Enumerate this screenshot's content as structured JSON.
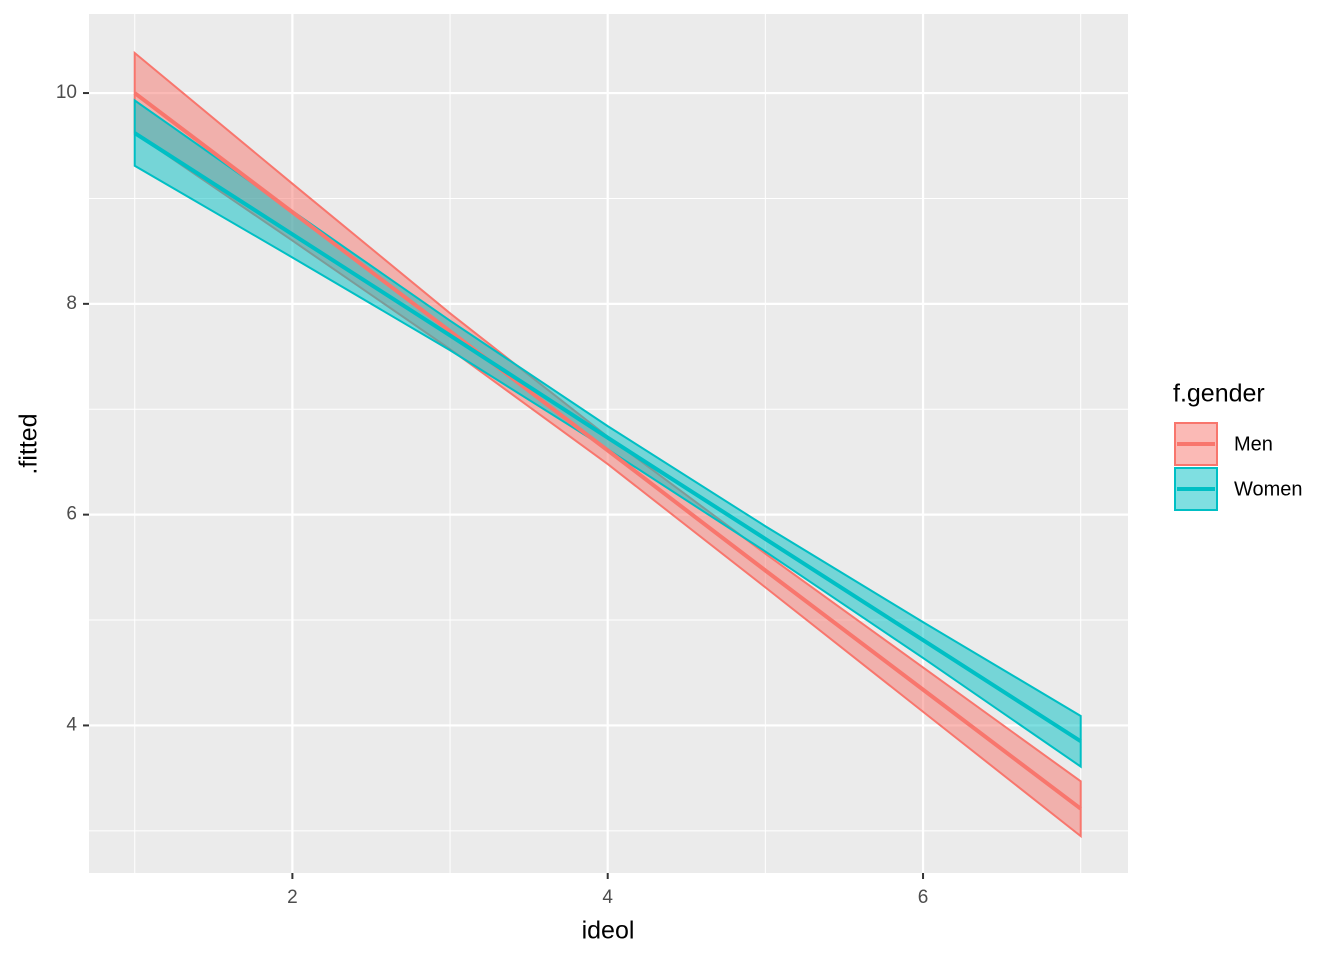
{
  "chart_data": {
    "type": "line",
    "x_label": "ideol",
    "y_label": ".fitted",
    "legend_title": "f.gender",
    "legend_position": "right",
    "grid": true,
    "xlim": [
      0.71,
      7.3
    ],
    "ylim": [
      2.6,
      10.75
    ],
    "xticks": [
      2,
      4,
      6
    ],
    "yticks": [
      4,
      6,
      8,
      10
    ],
    "x": [
      1,
      2,
      3,
      4,
      5,
      6,
      7
    ],
    "series": [
      {
        "name": "Men",
        "color": "#F8766D",
        "values": [
          10.0,
          8.87,
          7.74,
          6.61,
          5.47,
          4.34,
          3.21
        ],
        "lower": [
          9.62,
          8.6,
          7.57,
          6.48,
          5.31,
          4.13,
          2.95
        ],
        "upper": [
          10.38,
          9.14,
          7.91,
          6.74,
          5.63,
          4.55,
          3.47
        ]
      },
      {
        "name": "Women",
        "color": "#00BFC4",
        "values": [
          9.62,
          8.66,
          7.7,
          6.73,
          5.77,
          4.81,
          3.85
        ],
        "lower": [
          9.31,
          8.44,
          7.56,
          6.62,
          5.65,
          4.64,
          3.61
        ],
        "upper": [
          9.93,
          8.88,
          7.84,
          6.84,
          5.89,
          4.98,
          4.09
        ]
      }
    ]
  }
}
